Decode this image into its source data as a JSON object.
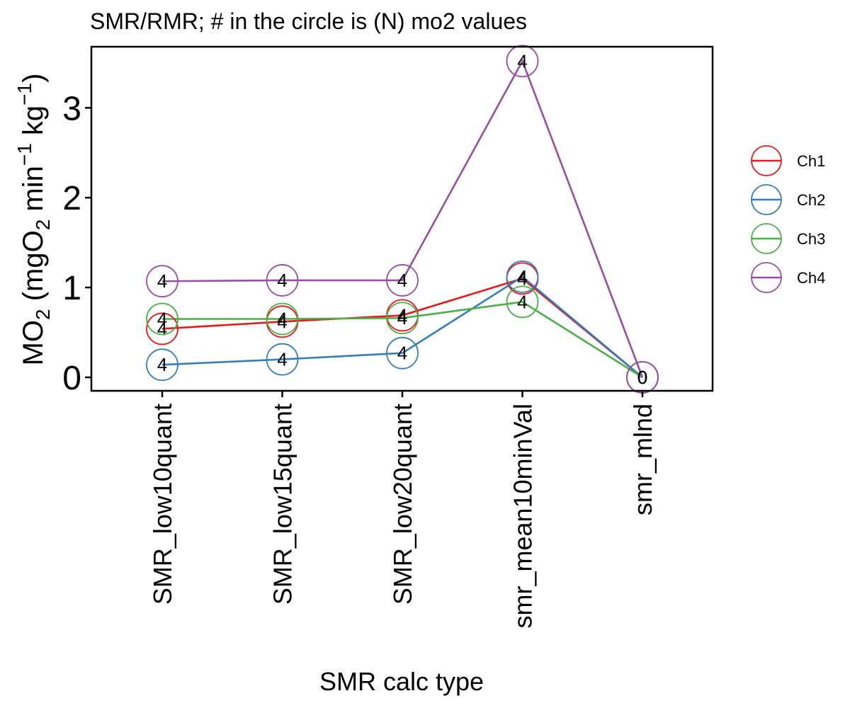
{
  "chart_data": {
    "type": "line",
    "title": "SMR/RMR; # in the circle is (N) mo2 values",
    "xlabel": "SMR calc type",
    "ylabel": {
      "parts": [
        "MO",
        "2",
        " (mgO",
        "2",
        " min",
        "−1",
        " kg",
        "−1",
        ")"
      ]
    },
    "categories": [
      "SMR_low10quant",
      "SMR_low15quant",
      "SMR_low20quant",
      "smr_mean10minVal",
      "smr_mlnd"
    ],
    "ylim": [
      -0.15,
      3.68
    ],
    "yticks": [
      0,
      1,
      2,
      3
    ],
    "ytick_labels": [
      "0",
      "1",
      "2",
      "3"
    ],
    "legend_position": "right",
    "series": [
      {
        "name": "Ch1",
        "color": "#e41a1c",
        "values": [
          0.54,
          0.62,
          0.69,
          1.1,
          0.0
        ],
        "n": [
          "4",
          "4",
          "4",
          "4",
          "0"
        ]
      },
      {
        "name": "Ch2",
        "color": "#377eb8",
        "values": [
          0.14,
          0.2,
          0.27,
          1.12,
          0.0
        ],
        "n": [
          "4",
          "4",
          "4",
          "4",
          "0"
        ]
      },
      {
        "name": "Ch3",
        "color": "#4daf4a",
        "values": [
          0.65,
          0.65,
          0.66,
          0.84,
          0.0
        ],
        "n": [
          "4",
          "4",
          "4",
          "4",
          "0"
        ]
      },
      {
        "name": "Ch4",
        "color": "#984ea3",
        "values": [
          1.07,
          1.08,
          1.08,
          3.52,
          0.0
        ],
        "n": [
          "4",
          "4",
          "4",
          "4",
          "0"
        ]
      }
    ]
  }
}
